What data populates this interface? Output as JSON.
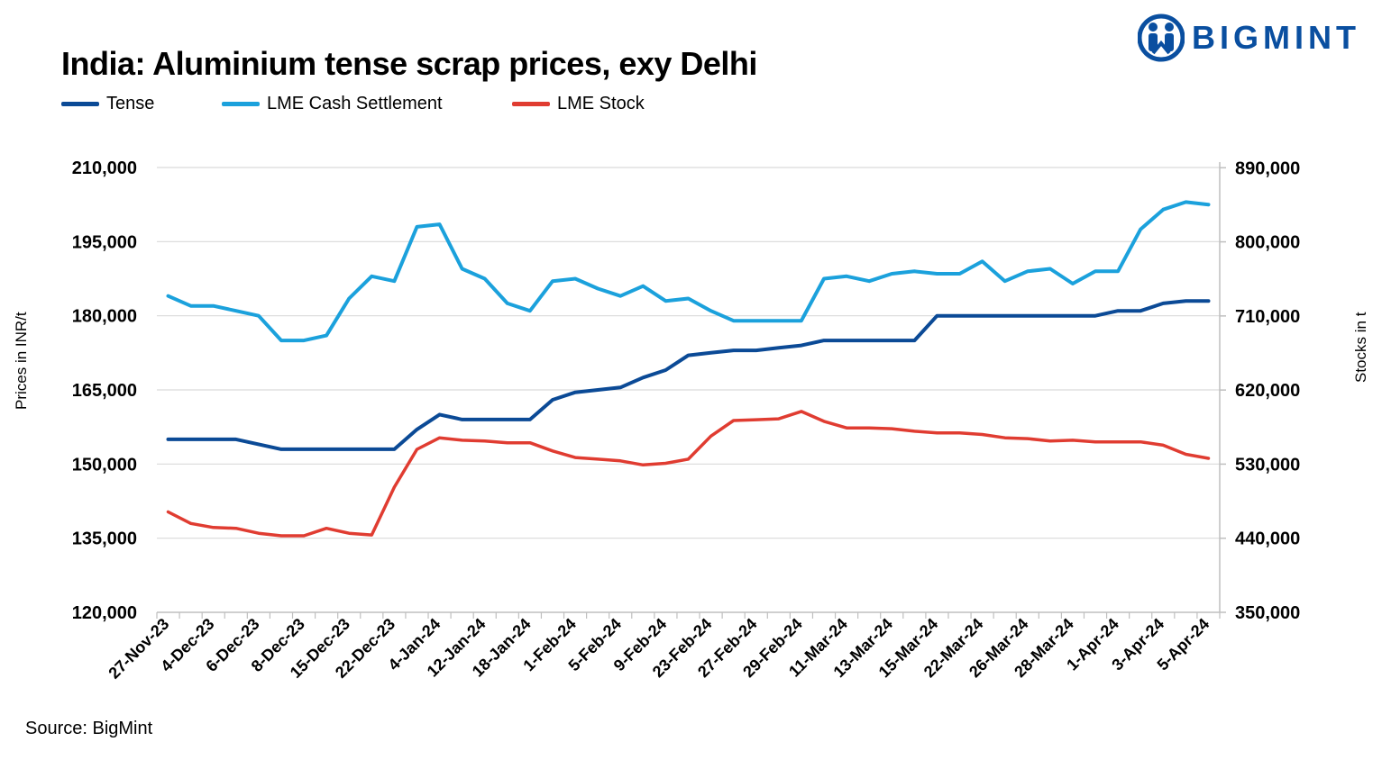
{
  "title": "India: Aluminium tense scrap prices, exy Delhi",
  "brand": "BIGMINT",
  "source": "Source: BigMint",
  "colors": {
    "tense": "#0b4a96",
    "lme_cash": "#1ba1dc",
    "lme_stock": "#e03c31",
    "axis": "#bfbfbf",
    "grid": "#d9d9d9",
    "brand": "#0a4fa0"
  },
  "chart_data": {
    "type": "line",
    "title": "India: Aluminium tense scrap prices, exy Delhi",
    "ylabel": "Prices in INR/t",
    "y2label": "Stocks in t",
    "ylim": [
      120000,
      210000
    ],
    "y2lim": [
      350000,
      910000
    ],
    "yticks": [
      "120,000",
      "135,000",
      "150,000",
      "165,000",
      "180,000",
      "195,000",
      "210,000"
    ],
    "y2ticks": [
      "350,000",
      "440,000",
      "530,000",
      "620,000",
      "710,000",
      "800,000",
      "890,000"
    ],
    "ytick_values": [
      120000,
      135000,
      150000,
      165000,
      180000,
      195000,
      210000
    ],
    "y2tick_values": [
      350000,
      440000,
      530000,
      620000,
      710000,
      800000,
      890000
    ],
    "xticks": [
      "27-Nov-23",
      "4-Dec-23",
      "6-Dec-23",
      "8-Dec-23",
      "15-Dec-23",
      "22-Dec-23",
      "4-Jan-24",
      "12-Jan-24",
      "18-Jan-24",
      "1-Feb-24",
      "5-Feb-24",
      "9-Feb-24",
      "23-Feb-24",
      "27-Feb-24",
      "29-Feb-24",
      "11-Mar-24",
      "13-Mar-24",
      "15-Mar-24",
      "22-Mar-24",
      "26-Mar-24",
      "28-Mar-24",
      "1-Apr-24",
      "3-Apr-24",
      "5-Apr-24"
    ],
    "legend_position": "top-left",
    "n_points": 47,
    "series": [
      {
        "name": "Tense",
        "axis": "left",
        "color": "#0b4a96",
        "values": [
          155000,
          155000,
          155000,
          155000,
          154000,
          153000,
          153000,
          153000,
          153000,
          153000,
          153000,
          157000,
          160000,
          159000,
          159000,
          159000,
          159000,
          163000,
          164500,
          165000,
          165500,
          167500,
          169000,
          172000,
          172500,
          173000,
          173000,
          173500,
          174000,
          175000,
          175000,
          175000,
          175000,
          175000,
          180000,
          180000,
          180000,
          180000,
          180000,
          180000,
          180000,
          180000,
          181000,
          181000,
          182500,
          183000,
          183000
        ]
      },
      {
        "name": "LME Cash Settlement",
        "axis": "left",
        "color": "#1ba1dc",
        "values": [
          184000,
          182000,
          182000,
          181000,
          180000,
          175000,
          175000,
          176000,
          183500,
          188000,
          187000,
          198000,
          198500,
          189500,
          187500,
          182500,
          181000,
          187000,
          187500,
          185500,
          184000,
          186000,
          183000,
          183500,
          181000,
          179000,
          179000,
          179000,
          179000,
          187500,
          188000,
          187000,
          188500,
          189000,
          188500,
          188500,
          191000,
          187000,
          189000,
          189500,
          186500,
          189000,
          189000,
          197500,
          201500,
          203000,
          202500
        ]
      },
      {
        "name": "LME Stock",
        "axis": "right",
        "color": "#e03c31",
        "values": [
          472000,
          458000,
          453000,
          452000,
          446000,
          443000,
          443000,
          452000,
          446000,
          444000,
          502000,
          548000,
          562000,
          559000,
          558000,
          556000,
          556000,
          546000,
          538000,
          536000,
          534000,
          529000,
          531000,
          536000,
          564000,
          583000,
          584000,
          585000,
          594000,
          582000,
          574000,
          574000,
          573000,
          570000,
          568000,
          568000,
          566000,
          562000,
          561000,
          558000,
          559000,
          557000,
          557000,
          557000,
          553000,
          542000,
          537000
        ]
      }
    ]
  },
  "legend": [
    {
      "label": "Tense",
      "color": "#0b4a96"
    },
    {
      "label": "LME Cash Settlement",
      "color": "#1ba1dc"
    },
    {
      "label": "LME Stock",
      "color": "#e03c31"
    }
  ]
}
